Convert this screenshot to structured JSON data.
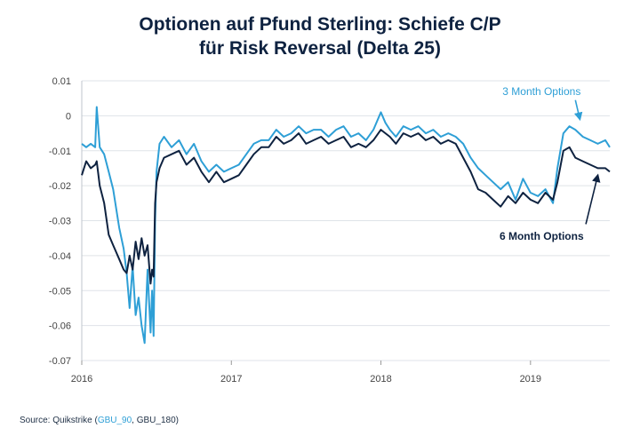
{
  "chart_data": {
    "type": "line",
    "title_lines": [
      "Optionen auf Pfund Sterling: Schiefe C/P",
      "für Risk Reversal (Delta 25)"
    ],
    "xlabel": "",
    "ylabel": "",
    "x_tick_labels": [
      "2016",
      "2017",
      "2018",
      "2019"
    ],
    "x_ticks": [
      2016.0,
      2017.0,
      2018.0,
      2019.0
    ],
    "xlim": [
      2016.0,
      2019.53
    ],
    "y_ticks": [
      0.01,
      0,
      -0.01,
      -0.02,
      -0.03,
      -0.04,
      -0.05,
      -0.06,
      -0.07
    ],
    "y_tick_labels": [
      "0.01",
      "0",
      "-0.01",
      "-0.02",
      "-0.03",
      "-0.04",
      "-0.05",
      "-0.06",
      "-0.07"
    ],
    "ylim": [
      -0.07,
      0.01
    ],
    "grid": "horizontal",
    "series": [
      {
        "name": "3 Month Options",
        "color": "#2e9fd6",
        "x": [
          2016.0,
          2016.03,
          2016.06,
          2016.09,
          2016.1,
          2016.12,
          2016.15,
          2016.18,
          2016.21,
          2016.25,
          2016.28,
          2016.3,
          2016.32,
          2016.34,
          2016.36,
          2016.38,
          2016.4,
          2016.42,
          2016.44,
          2016.46,
          2016.47,
          2016.48,
          2016.49,
          2016.5,
          2016.52,
          2016.55,
          2016.6,
          2016.65,
          2016.7,
          2016.75,
          2016.8,
          2016.85,
          2016.9,
          2016.95,
          2017.0,
          2017.05,
          2017.1,
          2017.15,
          2017.2,
          2017.25,
          2017.3,
          2017.35,
          2017.4,
          2017.45,
          2017.5,
          2017.55,
          2017.6,
          2017.65,
          2017.7,
          2017.75,
          2017.8,
          2017.85,
          2017.9,
          2017.95,
          2018.0,
          2018.03,
          2018.06,
          2018.1,
          2018.15,
          2018.2,
          2018.25,
          2018.3,
          2018.35,
          2018.4,
          2018.45,
          2018.5,
          2018.55,
          2018.6,
          2018.65,
          2018.7,
          2018.75,
          2018.8,
          2018.85,
          2018.9,
          2018.95,
          2019.0,
          2019.05,
          2019.1,
          2019.15,
          2019.18,
          2019.22,
          2019.26,
          2019.3,
          2019.35,
          2019.4,
          2019.45,
          2019.5,
          2019.53
        ],
        "values": [
          -0.008,
          -0.009,
          -0.008,
          -0.009,
          0.0025,
          -0.009,
          -0.011,
          -0.016,
          -0.021,
          -0.032,
          -0.038,
          -0.045,
          -0.055,
          -0.043,
          -0.057,
          -0.052,
          -0.06,
          -0.065,
          -0.044,
          -0.062,
          -0.05,
          -0.063,
          -0.03,
          -0.016,
          -0.008,
          -0.006,
          -0.009,
          -0.007,
          -0.011,
          -0.008,
          -0.013,
          -0.016,
          -0.014,
          -0.016,
          -0.015,
          -0.014,
          -0.011,
          -0.008,
          -0.007,
          -0.007,
          -0.004,
          -0.006,
          -0.005,
          -0.003,
          -0.005,
          -0.004,
          -0.004,
          -0.006,
          -0.004,
          -0.003,
          -0.006,
          -0.005,
          -0.007,
          -0.004,
          0.001,
          -0.002,
          -0.004,
          -0.006,
          -0.003,
          -0.004,
          -0.003,
          -0.005,
          -0.004,
          -0.006,
          -0.005,
          -0.006,
          -0.008,
          -0.012,
          -0.015,
          -0.017,
          -0.019,
          -0.021,
          -0.019,
          -0.024,
          -0.018,
          -0.022,
          -0.023,
          -0.021,
          -0.025,
          -0.015,
          -0.005,
          -0.003,
          -0.004,
          -0.006,
          -0.007,
          -0.008,
          -0.007,
          -0.009
        ]
      },
      {
        "name": "6 Month Options",
        "color": "#0e2240",
        "x": [
          2016.0,
          2016.03,
          2016.06,
          2016.09,
          2016.1,
          2016.12,
          2016.15,
          2016.18,
          2016.21,
          2016.25,
          2016.28,
          2016.3,
          2016.32,
          2016.34,
          2016.36,
          2016.38,
          2016.4,
          2016.42,
          2016.44,
          2016.46,
          2016.47,
          2016.48,
          2016.49,
          2016.5,
          2016.52,
          2016.55,
          2016.6,
          2016.65,
          2016.7,
          2016.75,
          2016.8,
          2016.85,
          2016.9,
          2016.95,
          2017.0,
          2017.05,
          2017.1,
          2017.15,
          2017.2,
          2017.25,
          2017.3,
          2017.35,
          2017.4,
          2017.45,
          2017.5,
          2017.55,
          2017.6,
          2017.65,
          2017.7,
          2017.75,
          2017.8,
          2017.85,
          2017.9,
          2017.95,
          2018.0,
          2018.03,
          2018.06,
          2018.1,
          2018.15,
          2018.2,
          2018.25,
          2018.3,
          2018.35,
          2018.4,
          2018.45,
          2018.5,
          2018.55,
          2018.6,
          2018.65,
          2018.7,
          2018.75,
          2018.8,
          2018.85,
          2018.9,
          2018.95,
          2019.0,
          2019.05,
          2019.1,
          2019.15,
          2019.18,
          2019.22,
          2019.26,
          2019.3,
          2019.35,
          2019.4,
          2019.45,
          2019.5,
          2019.53
        ],
        "values": [
          -0.017,
          -0.013,
          -0.015,
          -0.014,
          -0.013,
          -0.02,
          -0.025,
          -0.034,
          -0.037,
          -0.041,
          -0.044,
          -0.045,
          -0.04,
          -0.044,
          -0.036,
          -0.041,
          -0.035,
          -0.04,
          -0.037,
          -0.048,
          -0.044,
          -0.046,
          -0.025,
          -0.019,
          -0.015,
          -0.012,
          -0.011,
          -0.01,
          -0.014,
          -0.012,
          -0.016,
          -0.019,
          -0.016,
          -0.019,
          -0.018,
          -0.017,
          -0.014,
          -0.011,
          -0.009,
          -0.009,
          -0.006,
          -0.008,
          -0.007,
          -0.005,
          -0.008,
          -0.007,
          -0.006,
          -0.008,
          -0.007,
          -0.006,
          -0.009,
          -0.008,
          -0.009,
          -0.007,
          -0.004,
          -0.005,
          -0.006,
          -0.008,
          -0.005,
          -0.006,
          -0.005,
          -0.007,
          -0.006,
          -0.008,
          -0.007,
          -0.008,
          -0.012,
          -0.016,
          -0.021,
          -0.022,
          -0.024,
          -0.026,
          -0.023,
          -0.025,
          -0.022,
          -0.024,
          -0.025,
          -0.022,
          -0.024,
          -0.019,
          -0.01,
          -0.009,
          -0.012,
          -0.013,
          -0.014,
          -0.015,
          -0.015,
          -0.016
        ]
      }
    ],
    "annotations": [
      {
        "text": "3 Month Options",
        "color": "#2e9fd6",
        "points_to_x": 2019.33,
        "points_to_y": -0.001
      },
      {
        "text": "6 Month Options",
        "color": "#0e2240",
        "points_to_x": 2019.45,
        "points_to_y": -0.017
      }
    ]
  },
  "footer": {
    "prefix": "Source: Quikstrike (",
    "link": "GBU_90",
    "rest": ", GBU_180)"
  }
}
